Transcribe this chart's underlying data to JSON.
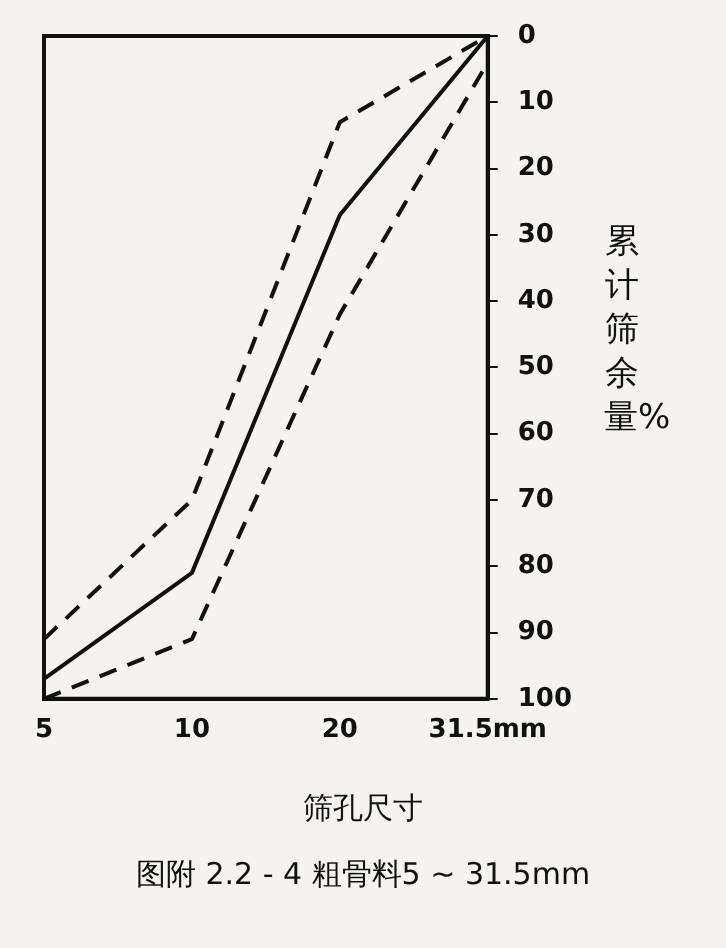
{
  "chart_data": {
    "type": "line",
    "xlabel": "筛孔尺寸",
    "ylabel": "累计筛余量%",
    "annotations": [
      "图附 2.2 - 4 粗骨料5 ~ 31.5mm"
    ],
    "categories": [
      "5",
      "10",
      "20",
      "31.5mm"
    ],
    "ylim": [
      100,
      0
    ],
    "yticks": [
      0,
      10,
      20,
      30,
      40,
      50,
      60,
      70,
      80,
      90,
      100
    ],
    "series": [
      {
        "color": "#111111",
        "line_style": "dashed",
        "values": [
          91,
          70,
          13,
          0
        ]
      },
      {
        "color": "#111111",
        "line_style": "solid",
        "values": [
          97,
          81,
          27,
          0
        ]
      },
      {
        "color": "#111111",
        "line_style": "dashed",
        "values": [
          100,
          91,
          42,
          4
        ]
      }
    ],
    "marker": "none",
    "legend": false
  }
}
